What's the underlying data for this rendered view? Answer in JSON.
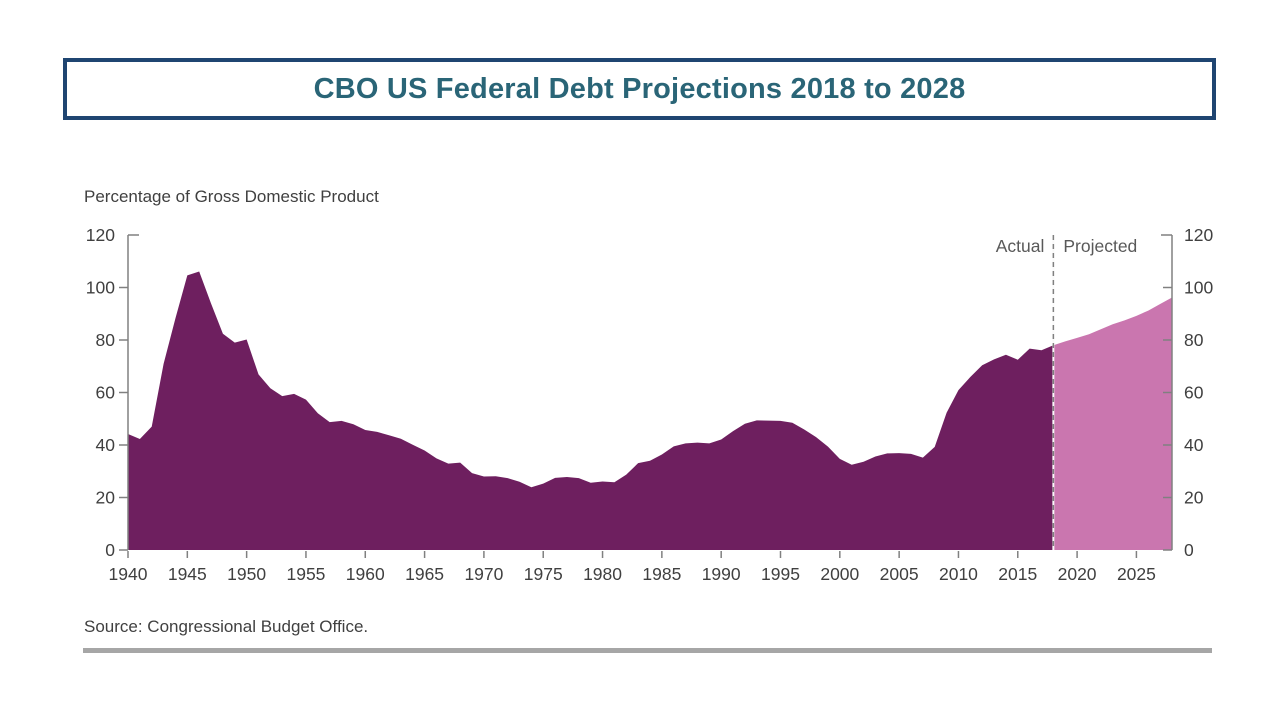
{
  "slide": {
    "title": "CBO US Federal Debt Projections 2018 to 2028",
    "source": "Source: Congressional Budget Office.",
    "colors": {
      "title_text": "#2A6577",
      "title_border": "#1F4571",
      "axis": "#808080",
      "tick_label": "#404040",
      "annotation": "#595959",
      "divider_bar": "#A6A6A6"
    }
  },
  "chart_data": {
    "type": "area",
    "title": "CBO US Federal Debt Projections 2018 to 2028",
    "xlabel": "",
    "ylabel": "Percentage of Gross Domestic Product",
    "x_range": [
      1940,
      2028
    ],
    "ylim": [
      0,
      120
    ],
    "x_ticks": [
      1940,
      1945,
      1950,
      1955,
      1960,
      1965,
      1970,
      1975,
      1980,
      1985,
      1990,
      1995,
      2000,
      2005,
      2010,
      2015,
      2020,
      2025
    ],
    "y_ticks": [
      0,
      20,
      40,
      60,
      80,
      100,
      120
    ],
    "grid": false,
    "legend_position": "none",
    "annotations": {
      "actual_label": "Actual",
      "projected_label": "Projected",
      "divider_year": 2018
    },
    "series": [
      {
        "name": "Actual",
        "color": "#6E1F5F",
        "start_year": 1940,
        "values": [
          44.2,
          42.3,
          47.0,
          70.9,
          88.3,
          104.6,
          106.1,
          93.9,
          82.4,
          79.0,
          80.2,
          66.9,
          61.6,
          58.6,
          59.5,
          57.3,
          52.1,
          48.7,
          49.2,
          47.9,
          45.7,
          45.0,
          43.7,
          42.4,
          40.1,
          37.9,
          34.9,
          32.9,
          33.3,
          29.3,
          28.0,
          28.1,
          27.4,
          26.0,
          23.9,
          25.3,
          27.5,
          27.8,
          27.4,
          25.6,
          26.1,
          25.8,
          28.7,
          33.1,
          34.0,
          36.4,
          39.5,
          40.6,
          40.9,
          40.6,
          42.1,
          45.3,
          48.1,
          49.4,
          49.3,
          49.2,
          48.5,
          45.9,
          43.0,
          39.4,
          34.7,
          32.5,
          33.6,
          35.6,
          36.8,
          36.9,
          36.6,
          35.2,
          39.3,
          52.3,
          60.9,
          65.9,
          70.4,
          72.6,
          74.4,
          72.5,
          76.7,
          76.1,
          78.0
        ]
      },
      {
        "name": "Projected",
        "color": "#CA76AF",
        "start_year": 2018,
        "values": [
          78.0,
          79.5,
          80.8,
          82.2,
          84.1,
          86.0,
          87.5,
          89.2,
          91.2,
          93.7,
          96.2
        ]
      }
    ]
  }
}
